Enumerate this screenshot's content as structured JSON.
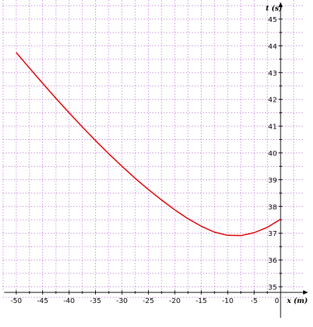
{
  "chart_data": {
    "type": "line",
    "xlabel": "x (m)",
    "ylabel": "t (s)",
    "xlim": [
      -52.5,
      4.5
    ],
    "ylim": [
      34.9,
      45.8
    ],
    "grid": true,
    "grid_style": "dotted",
    "x_ticks": [
      "-50",
      "-45",
      "-40",
      "-35",
      "-30",
      "-25",
      "-20",
      "-15",
      "-10",
      "-5",
      "0"
    ],
    "y_ticks": [
      "35",
      "36",
      "37",
      "38",
      "39",
      "40",
      "41",
      "42",
      "43",
      "44",
      "45"
    ],
    "series": [
      {
        "color": "#dd0000",
        "x": [
          -50,
          -47.5,
          -45,
          -42.5,
          -40,
          -37.5,
          -35,
          -32.5,
          -30,
          -27.5,
          -25,
          -22.5,
          -20,
          -17.5,
          -15,
          -12.5,
          -10,
          -7.5,
          -5,
          -2.5,
          0
        ],
        "y": [
          43.75,
          43.17,
          42.6,
          42.04,
          41.5,
          40.97,
          40.46,
          39.97,
          39.5,
          39.05,
          38.63,
          38.24,
          37.87,
          37.54,
          37.26,
          37.04,
          36.92,
          36.91,
          37.02,
          37.22,
          37.52
        ]
      }
    ],
    "colors": {
      "grid": "#aa44cc",
      "axis": "#000000",
      "curve": "#dd0000"
    }
  }
}
